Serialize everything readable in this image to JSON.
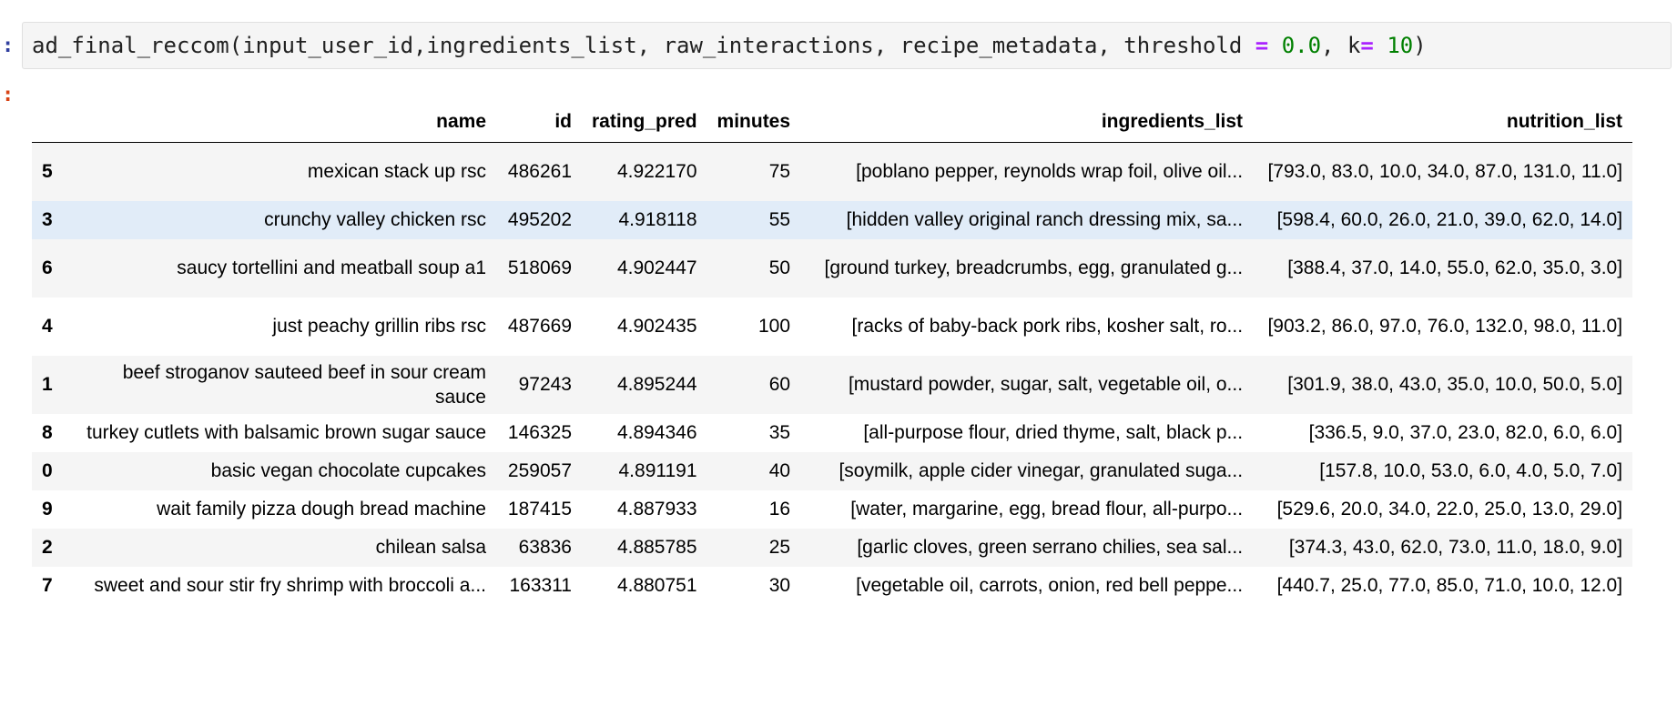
{
  "cell": {
    "in_prompt": ":",
    "out_prompt": ":",
    "code": {
      "func": "ad_final_reccom(input_user_id,ingredients_list, raw_interactions, recipe_metadata, threshold ",
      "eq1": "=",
      "sp1": " ",
      "val1": "0.0",
      "mid": ", k",
      "eq2": "=",
      "sp2": " ",
      "val2": "10",
      "end": ")"
    }
  },
  "colors": {
    "operator": "#aa22ff",
    "number": "#008000",
    "hover_row": "#e1ecf8",
    "stripe_row": "#f5f5f5"
  },
  "table": {
    "columns": [
      "",
      "name",
      "id",
      "rating_pred",
      "minutes",
      "ingredients_list",
      "nutrition_list"
    ],
    "rows": [
      {
        "index": "5",
        "name": "mexican stack up rsc",
        "id": "486261",
        "rating_pred": "4.922170",
        "minutes": "75",
        "ingredients_list": "[poblano pepper, reynolds wrap foil, olive oil...",
        "nutrition_list": "[793.0, 83.0, 10.0, 34.0, 87.0, 131.0, 11.0]"
      },
      {
        "index": "3",
        "name": "crunchy valley chicken rsc",
        "id": "495202",
        "rating_pred": "4.918118",
        "minutes": "55",
        "ingredients_list": "[hidden valley original ranch dressing mix, sa...",
        "nutrition_list": "[598.4, 60.0, 26.0, 21.0, 39.0, 62.0, 14.0]"
      },
      {
        "index": "6",
        "name": "saucy tortellini and meatball soup a1",
        "id": "518069",
        "rating_pred": "4.902447",
        "minutes": "50",
        "ingredients_list": "[ground turkey, breadcrumbs, egg, granulated g...",
        "nutrition_list": "[388.4, 37.0, 14.0, 55.0, 62.0, 35.0, 3.0]"
      },
      {
        "index": "4",
        "name": "just peachy grillin ribs rsc",
        "id": "487669",
        "rating_pred": "4.902435",
        "minutes": "100",
        "ingredients_list": "[racks of baby-back pork ribs, kosher salt, ro...",
        "nutrition_list": "[903.2, 86.0, 97.0, 76.0, 132.0, 98.0, 11.0]"
      },
      {
        "index": "1",
        "name": "beef stroganov sauteed beef in sour cream sauce",
        "id": "97243",
        "rating_pred": "4.895244",
        "minutes": "60",
        "ingredients_list": "[mustard powder, sugar, salt, vegetable oil, o...",
        "nutrition_list": "[301.9, 38.0, 43.0, 35.0, 10.0, 50.0, 5.0]"
      },
      {
        "index": "8",
        "name": "turkey cutlets with balsamic brown sugar sauce",
        "id": "146325",
        "rating_pred": "4.894346",
        "minutes": "35",
        "ingredients_list": "[all-purpose flour, dried thyme, salt, black p...",
        "nutrition_list": "[336.5, 9.0, 37.0, 23.0, 82.0, 6.0, 6.0]"
      },
      {
        "index": "0",
        "name": "basic vegan chocolate cupcakes",
        "id": "259057",
        "rating_pred": "4.891191",
        "minutes": "40",
        "ingredients_list": "[soymilk, apple cider vinegar, granulated suga...",
        "nutrition_list": "[157.8, 10.0, 53.0, 6.0, 4.0, 5.0, 7.0]"
      },
      {
        "index": "9",
        "name": "wait family pizza dough bread machine",
        "id": "187415",
        "rating_pred": "4.887933",
        "minutes": "16",
        "ingredients_list": "[water, margarine, egg, bread flour, all-purpo...",
        "nutrition_list": "[529.6, 20.0, 34.0, 22.0, 25.0, 13.0, 29.0]"
      },
      {
        "index": "2",
        "name": "chilean salsa",
        "id": "63836",
        "rating_pred": "4.885785",
        "minutes": "25",
        "ingredients_list": "[garlic cloves, green serrano chilies, sea sal...",
        "nutrition_list": "[374.3, 43.0, 62.0, 73.0, 11.0, 18.0, 9.0]"
      },
      {
        "index": "7",
        "name": "sweet and sour stir fry shrimp with broccoli a...",
        "id": "163311",
        "rating_pred": "4.880751",
        "minutes": "30",
        "ingredients_list": "[vegetable oil, carrots, onion, red bell peppe...",
        "nutrition_list": "[440.7, 25.0, 77.0, 85.0, 71.0, 10.0, 12.0]"
      }
    ]
  }
}
